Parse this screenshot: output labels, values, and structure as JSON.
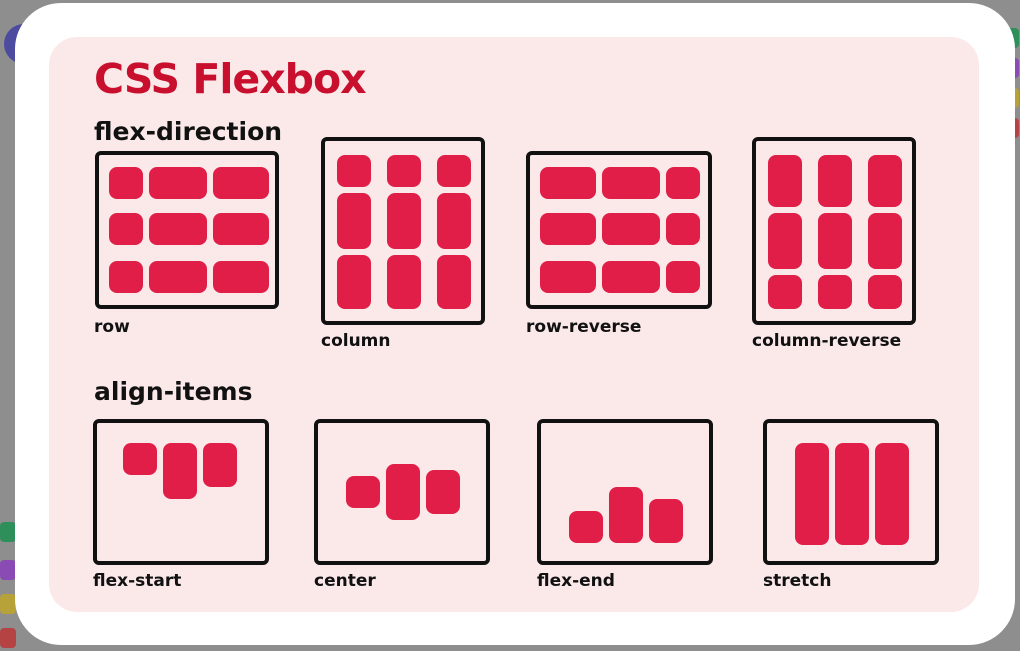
{
  "title": "CSS Flexbox",
  "sections": {
    "direction": "flex-direction",
    "align": "align-items"
  },
  "direction_demos": [
    {
      "label": "row"
    },
    {
      "label": "column"
    },
    {
      "label": "row-reverse"
    },
    {
      "label": "column-reverse"
    }
  ],
  "align_demos": [
    {
      "label": "flex-start"
    },
    {
      "label": "center"
    },
    {
      "label": "flex-end"
    },
    {
      "label": "stretch"
    }
  ],
  "colors": {
    "accent": "#e01e48",
    "title": "#c8102e",
    "card": "#fbe9e9"
  }
}
